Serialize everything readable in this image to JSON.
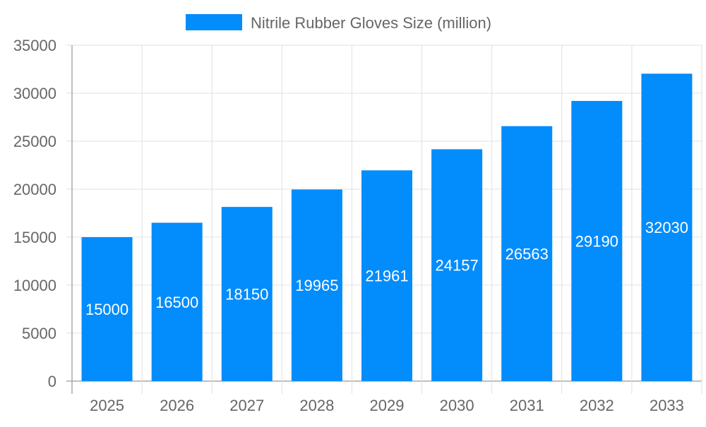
{
  "chart_data": {
    "type": "bar",
    "title": "",
    "xlabel": "",
    "ylabel": "",
    "categories": [
      "2025",
      "2026",
      "2027",
      "2028",
      "2029",
      "2030",
      "2031",
      "2032",
      "2033"
    ],
    "series": [
      {
        "name": "Nitrile Rubber Gloves Size (million)",
        "values": [
          15000,
          16500,
          18150,
          19965,
          21961,
          24157,
          26563,
          29190,
          32030
        ],
        "color": "#038cfc"
      }
    ],
    "ylim": [
      0,
      35000
    ],
    "yticks": [
      0,
      5000,
      10000,
      15000,
      20000,
      25000,
      30000,
      35000
    ],
    "grid": true,
    "legend_position": "top",
    "data_labels": true
  }
}
